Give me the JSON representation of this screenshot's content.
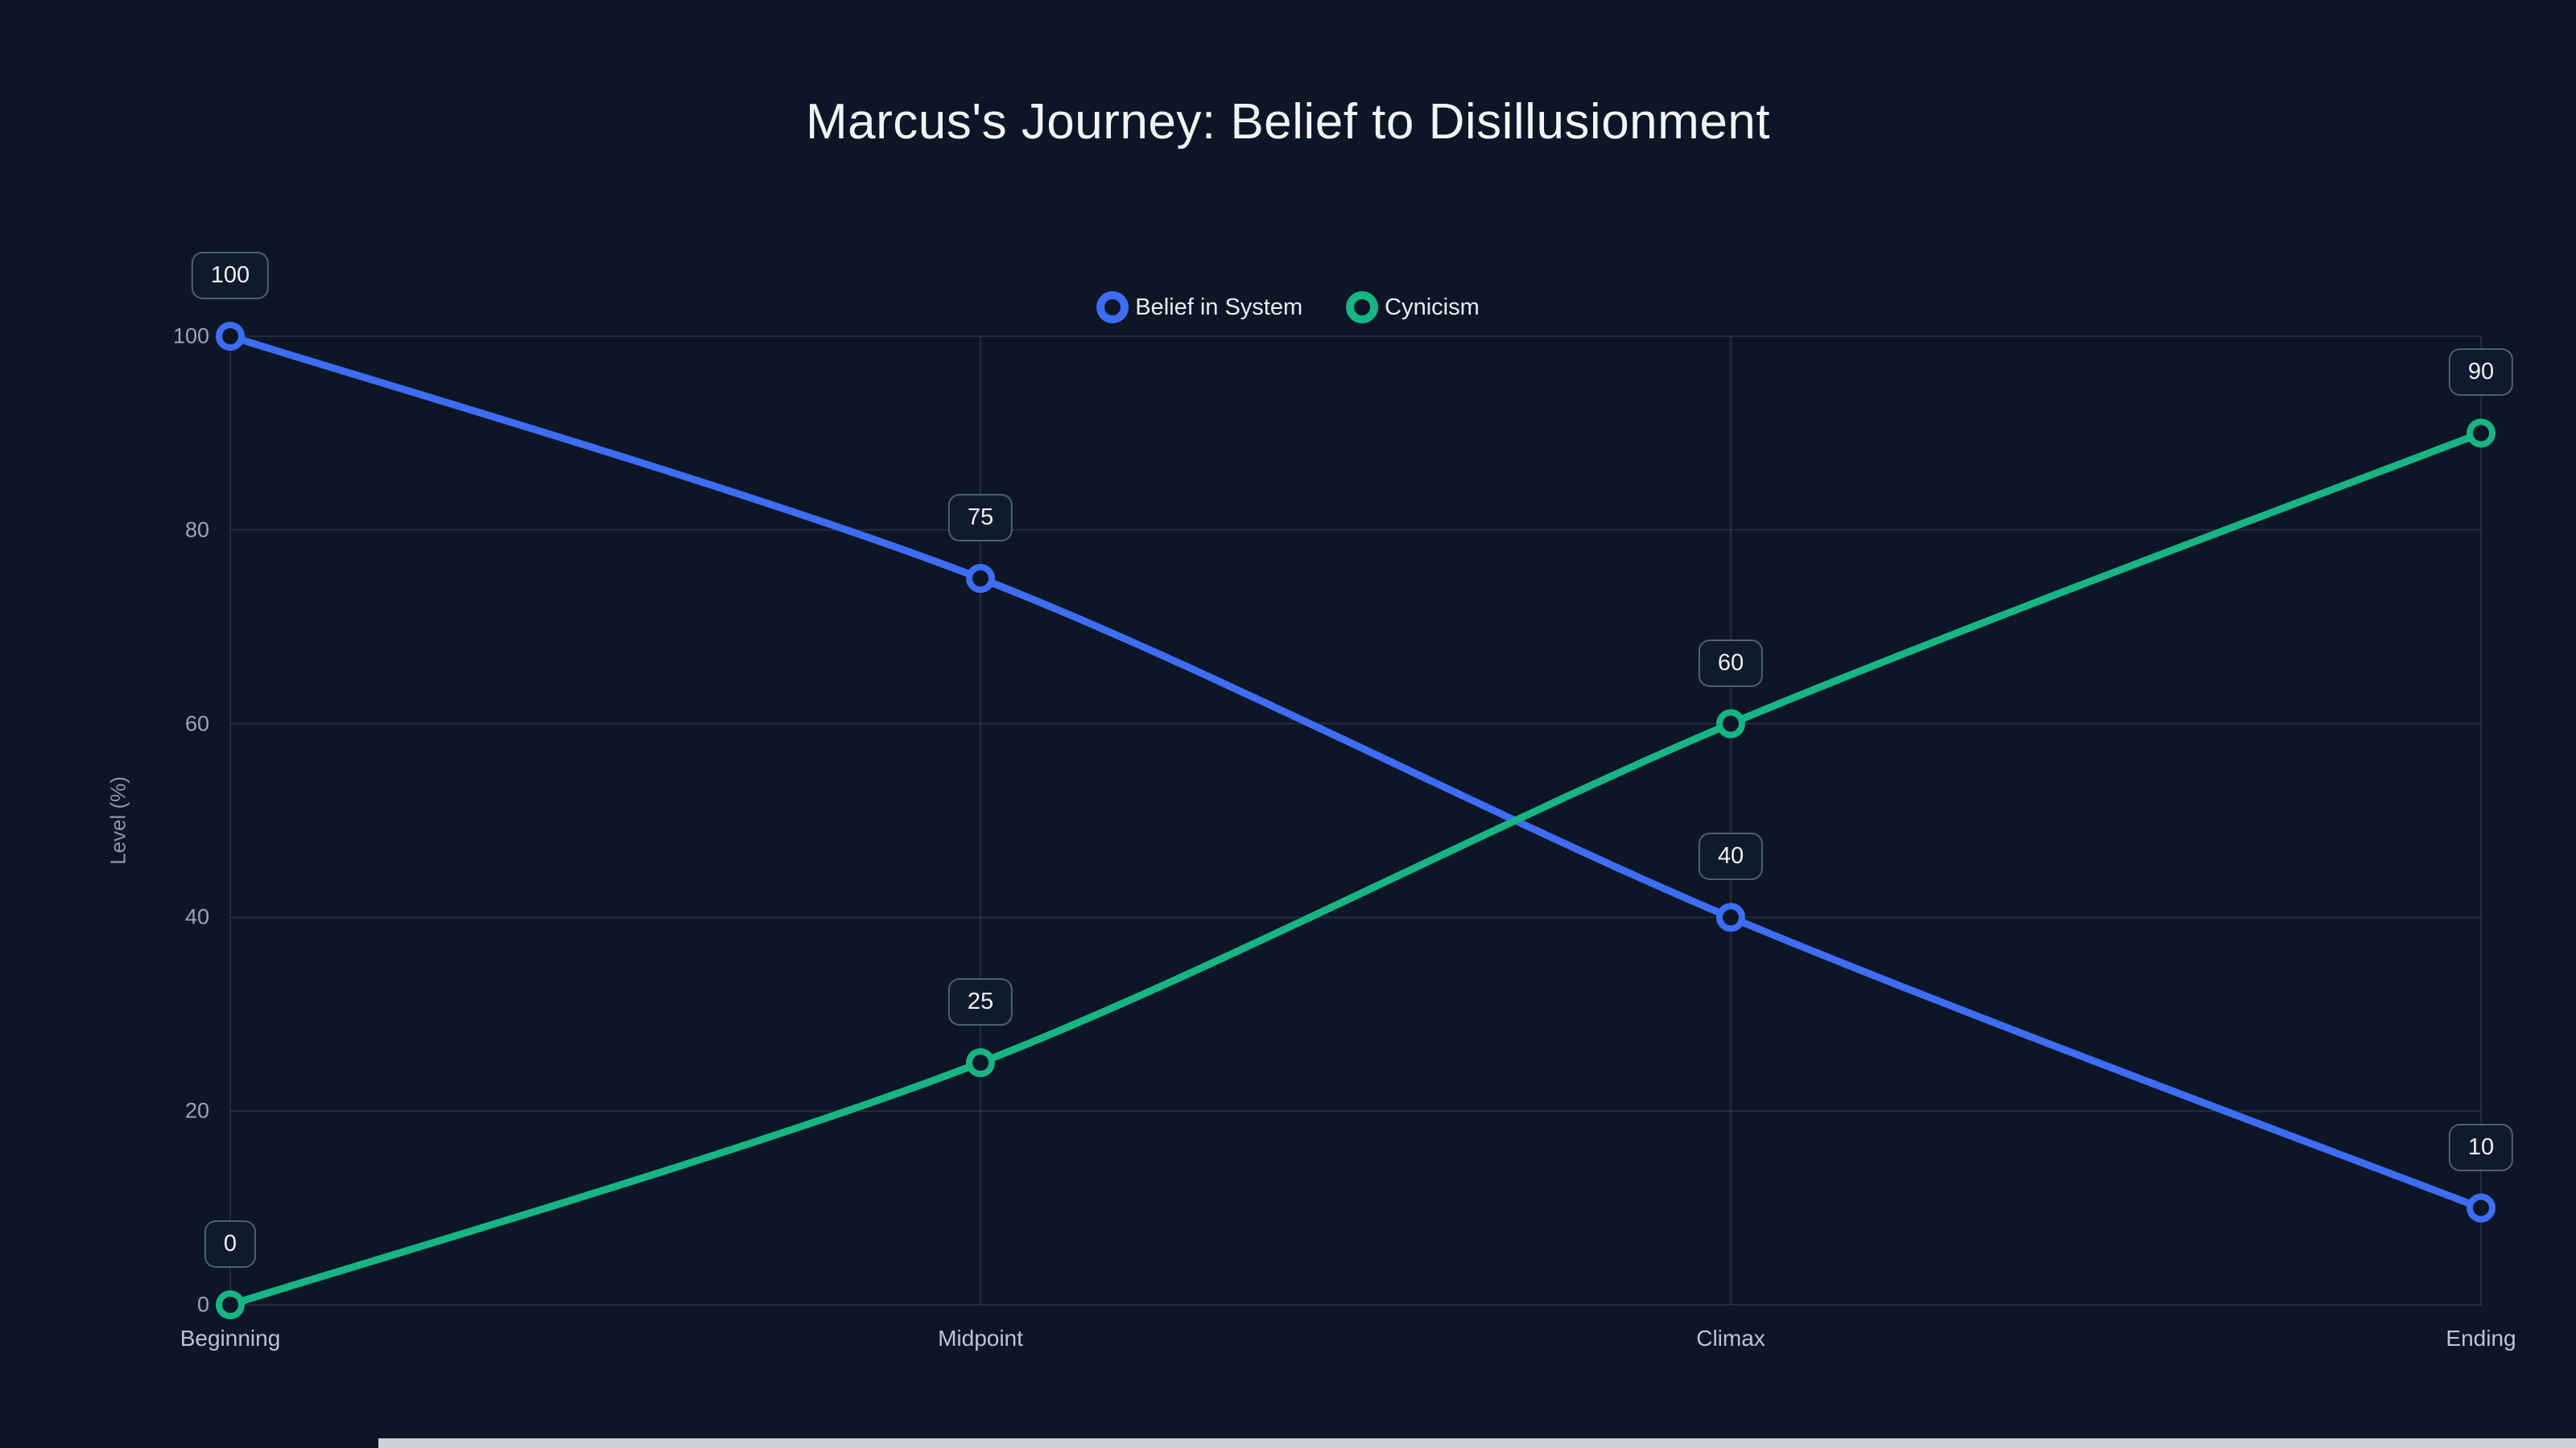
{
  "title": "Marcus's Journey: Belief to Disillusionment",
  "chart_data": {
    "type": "line",
    "categories": [
      "Beginning",
      "Midpoint",
      "Climax",
      "Ending"
    ],
    "series": [
      {
        "name": "Belief in System",
        "color": "#3d6df4",
        "values": [
          100,
          75,
          40,
          10
        ]
      },
      {
        "name": "Cynicism",
        "color": "#17b583",
        "values": [
          0,
          25,
          60,
          90
        ]
      }
    ],
    "title": "Marcus's Journey: Belief to Disillusionment",
    "xlabel": "",
    "ylabel": "Level (%)",
    "yticks": [
      0,
      20,
      40,
      60,
      80,
      100
    ],
    "ylim": [
      0,
      100
    ],
    "grid": true,
    "legend_position": "top-center",
    "point_labels": true
  },
  "colors": {
    "background": "#0d1626",
    "badge_background": "#0f1a2c",
    "badge_border": "#76829380",
    "grid": "#94a3b829",
    "title_text": "#f2f5f9",
    "axis_text": "#9aa6b8",
    "belief_blue": "#3d6df4",
    "cynicism_green": "#17b583"
  }
}
